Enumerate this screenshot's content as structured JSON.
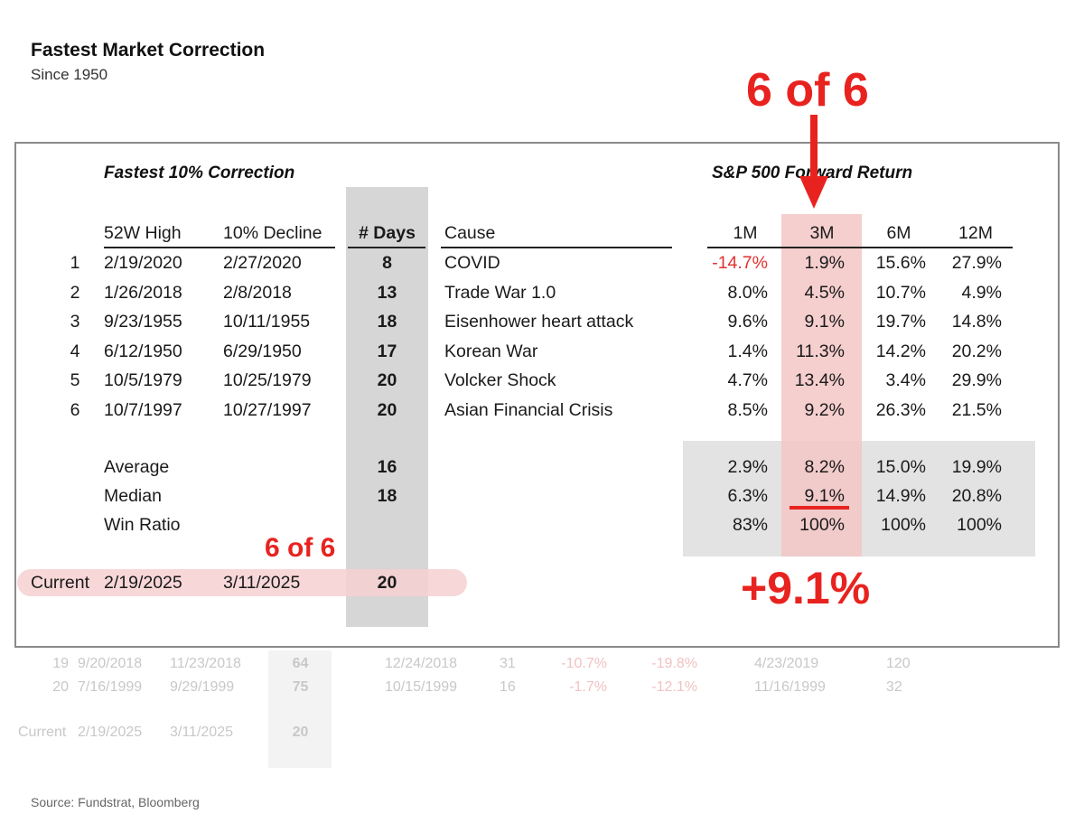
{
  "title": "Fastest Market Correction",
  "subtitle": "Since 1950",
  "headers": {
    "left_section": "Fastest 10% Correction",
    "right_section": "S&P 500 Forward Return",
    "high": "52W High",
    "decline": "10% Decline",
    "days": "# Days",
    "cause": "Cause",
    "m1": "1M",
    "m3": "3M",
    "m6": "6M",
    "m12": "12M"
  },
  "rows": [
    {
      "rank": "1",
      "high": "2/19/2020",
      "decline": "2/27/2020",
      "days": "8",
      "cause": "COVID",
      "m1": "-14.7%",
      "m3": "1.9%",
      "m6": "15.6%",
      "m12": "27.9%"
    },
    {
      "rank": "2",
      "high": "1/26/2018",
      "decline": "2/8/2018",
      "days": "13",
      "cause": "Trade War 1.0",
      "m1": "8.0%",
      "m3": "4.5%",
      "m6": "10.7%",
      "m12": "4.9%"
    },
    {
      "rank": "3",
      "high": "9/23/1955",
      "decline": "10/11/1955",
      "days": "18",
      "cause": "Eisenhower heart attack",
      "m1": "9.6%",
      "m3": "9.1%",
      "m6": "19.7%",
      "m12": "14.8%"
    },
    {
      "rank": "4",
      "high": "6/12/1950",
      "decline": "6/29/1950",
      "days": "17",
      "cause": "Korean War",
      "m1": "1.4%",
      "m3": "11.3%",
      "m6": "14.2%",
      "m12": "20.2%"
    },
    {
      "rank": "5",
      "high": "10/5/1979",
      "decline": "10/25/1979",
      "days": "20",
      "cause": "Volcker Shock",
      "m1": "4.7%",
      "m3": "13.4%",
      "m6": "3.4%",
      "m12": "29.9%"
    },
    {
      "rank": "6",
      "high": "10/7/1997",
      "decline": "10/27/1997",
      "days": "20",
      "cause": "Asian Financial Crisis",
      "m1": "8.5%",
      "m3": "9.2%",
      "m6": "26.3%",
      "m12": "21.5%"
    }
  ],
  "summary": [
    {
      "label": "Average",
      "days": "16",
      "m1": "2.9%",
      "m3": "8.2%",
      "m6": "15.0%",
      "m12": "19.9%"
    },
    {
      "label": "Median",
      "days": "18",
      "m1": "6.3%",
      "m3": "9.1%",
      "m6": "14.9%",
      "m12": "20.8%"
    },
    {
      "label": "Win Ratio",
      "days": "",
      "m1": "83%",
      "m3": "100%",
      "m6": "100%",
      "m12": "100%"
    }
  ],
  "current": {
    "label": "Current",
    "high": "2/19/2025",
    "decline": "3/11/2025",
    "days": "20"
  },
  "annotations": {
    "top_callout": "6 of 6",
    "current_callout": "6 of 6",
    "result_callout": "+9.1%"
  },
  "background_rows": [
    {
      "rank": "19",
      "high": "9/20/2018",
      "decline": "11/23/2018",
      "days": "64",
      "date2": "12/24/2018",
      "n1": "31",
      "pct1": "-10.7%",
      "pct2": "-19.8%",
      "date3": "4/23/2019",
      "n2": "120"
    },
    {
      "rank": "20",
      "high": "7/16/1999",
      "decline": "9/29/1999",
      "days": "75",
      "date2": "10/15/1999",
      "n1": "16",
      "pct1": "-1.7%",
      "pct2": "-12.1%",
      "date3": "11/16/1999",
      "n2": "32"
    }
  ],
  "background_current": {
    "label": "Current",
    "high": "2/19/2025",
    "decline": "3/11/2025",
    "days": "20"
  },
  "source": "Source: Fundstrat, Bloomberg",
  "colors": {
    "accent_red": "#e8231f",
    "negative": "#e0322f",
    "days_band": "#d6d6d6",
    "highlight_3m": "#f3c6c6",
    "summary_box": "#e3e3e3"
  },
  "chart_data": {
    "type": "table",
    "title": "Fastest Market Correction",
    "subtitle": "Since 1950",
    "columns": [
      "",
      "52W High",
      "10% Decline",
      "# Days",
      "Cause",
      "1M",
      "3M",
      "6M",
      "12M"
    ],
    "rows": [
      [
        "1",
        "2/19/2020",
        "2/27/2020",
        8,
        "COVID",
        -14.7,
        1.9,
        15.6,
        27.9
      ],
      [
        "2",
        "1/26/2018",
        "2/8/2018",
        13,
        "Trade War 1.0",
        8.0,
        4.5,
        10.7,
        4.9
      ],
      [
        "3",
        "9/23/1955",
        "10/11/1955",
        18,
        "Eisenhower heart attack",
        9.6,
        9.1,
        19.7,
        14.8
      ],
      [
        "4",
        "6/12/1950",
        "6/29/1950",
        17,
        "Korean War",
        1.4,
        11.3,
        14.2,
        20.2
      ],
      [
        "5",
        "10/5/1979",
        "10/25/1979",
        20,
        "Volcker Shock",
        4.7,
        13.4,
        3.4,
        29.9
      ],
      [
        "6",
        "10/7/1997",
        "10/27/1997",
        20,
        "Asian Financial Crisis",
        8.5,
        9.2,
        26.3,
        21.5
      ]
    ],
    "summary": {
      "Average": {
        "days": 16,
        "1M": 2.9,
        "3M": 8.2,
        "6M": 15.0,
        "12M": 19.9
      },
      "Median": {
        "days": 18,
        "1M": 6.3,
        "3M": 9.1,
        "6M": 14.9,
        "12M": 20.8
      },
      "Win Ratio": {
        "1M": 83,
        "3M": 100,
        "6M": 100,
        "12M": 100
      }
    },
    "current": {
      "52W High": "2/19/2025",
      "10% Decline": "3/11/2025",
      "# Days": 20
    }
  }
}
